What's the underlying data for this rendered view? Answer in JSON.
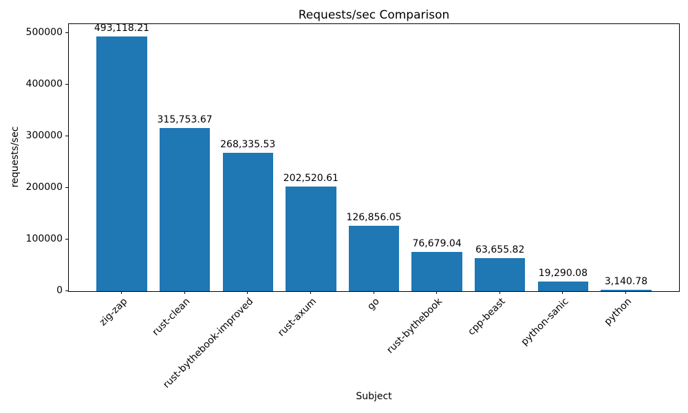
{
  "chart_data": {
    "type": "bar",
    "title": "Requests/sec Comparison",
    "xlabel": "Subject",
    "ylabel": "requests/sec",
    "categories": [
      "zig-zap",
      "rust-clean",
      "rust-bythebook-improved",
      "rust-axum",
      "go",
      "rust-bythebook",
      "cpp-beast",
      "python-sanic",
      "python"
    ],
    "values": [
      493118.21,
      315753.67,
      268335.53,
      202520.61,
      126856.05,
      76679.04,
      63655.82,
      19290.08,
      3140.78
    ],
    "bar_labels": [
      "493,118.21",
      "315,753.67",
      "268,335.53",
      "202,520.61",
      "126,856.05",
      "76,679.04",
      "63,655.82",
      "19,290.08",
      "3,140.78"
    ],
    "yticks": [
      0,
      100000,
      200000,
      300000,
      400000,
      500000
    ],
    "ytick_labels": [
      "0",
      "100000",
      "200000",
      "300000",
      "400000",
      "500000"
    ],
    "ylim": [
      0,
      517774
    ],
    "x_tick_rotation_deg": 45,
    "bar_color": "#1f77b4",
    "text_color": "#000000",
    "background_color": "#ffffff",
    "grid": false,
    "legend": "none"
  }
}
